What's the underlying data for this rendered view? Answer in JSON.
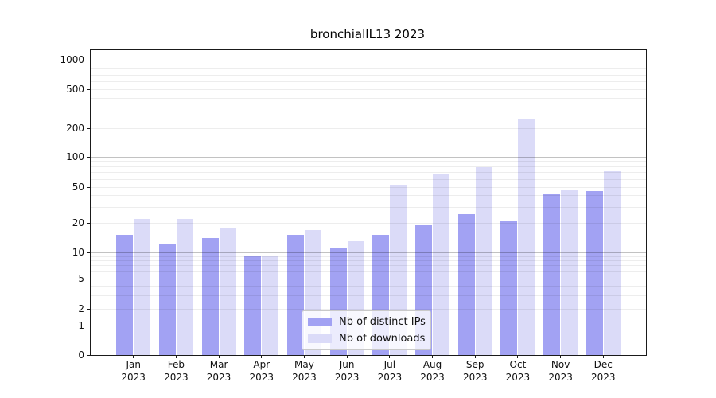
{
  "chart_data": {
    "type": "bar",
    "title": "bronchialIL13 2023",
    "categories": [
      "Jan 2023",
      "Feb 2023",
      "Mar 2023",
      "Apr 2023",
      "May 2023",
      "Jun 2023",
      "Jul 2023",
      "Aug 2023",
      "Sep 2023",
      "Oct 2023",
      "Nov 2023",
      "Dec 2023"
    ],
    "series": [
      {
        "name": "Nb of distinct IPs",
        "color": "#a2a2f3",
        "values": [
          15,
          12,
          14,
          9,
          15,
          11,
          15,
          19,
          25,
          21,
          42,
          45
        ]
      },
      {
        "name": "Nb of downloads",
        "color": "#dbdbf8",
        "values": [
          22,
          22,
          18,
          9,
          17,
          13,
          53,
          67,
          79,
          245,
          46,
          72
        ]
      }
    ],
    "yscale": "symlog",
    "y_ticks": [
      1000,
      500,
      200,
      100,
      50,
      20,
      10,
      5,
      2,
      1,
      0
    ],
    "ylim": [
      0,
      1259
    ],
    "xlabel": "",
    "ylabel": "",
    "grid": true,
    "legend_position": "lower center"
  },
  "colors": {
    "bar_distinct_ips": "#a2a2f3",
    "bar_downloads": "#dbdbf8",
    "axis": "#1a1a1a",
    "grid_major": "#c2c2c2",
    "grid_minor": "#ededed",
    "legend_border": "#c9c9c9",
    "background": "#ffffff"
  }
}
